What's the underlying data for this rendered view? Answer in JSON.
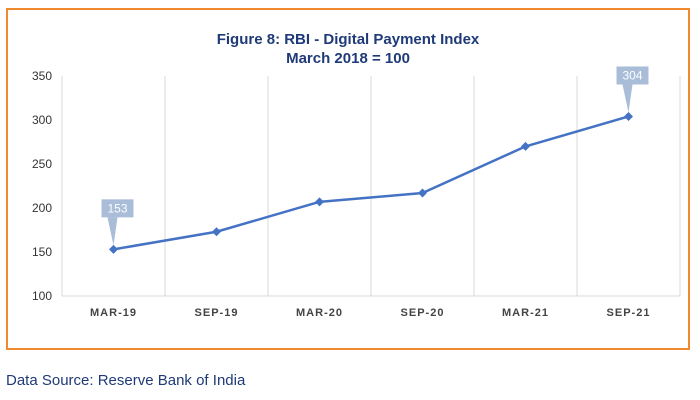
{
  "chart_data": {
    "type": "line",
    "title": "Figure 8: RBI - Digital Payment Index",
    "subtitle": "March 2018 = 100",
    "categories": [
      "MAR-19",
      "SEP-19",
      "MAR-20",
      "SEP-20",
      "MAR-21",
      "SEP-21"
    ],
    "series": [
      {
        "values": [
          153,
          173,
          207,
          217,
          270,
          304
        ]
      }
    ],
    "ylim": [
      100,
      350
    ],
    "yticks": [
      "100",
      "150",
      "200",
      "250",
      "300",
      "350"
    ],
    "grid": "vertical",
    "annotations": [
      {
        "category": "MAR-19",
        "text": "153"
      },
      {
        "category": "SEP-21",
        "text": "304"
      }
    ],
    "colors": {
      "line": "#4472C4",
      "callout": "#A9BDD8",
      "frame": "#F08A2E",
      "title": "#1F3A78"
    }
  },
  "source": "Data Source: Reserve Bank of India"
}
